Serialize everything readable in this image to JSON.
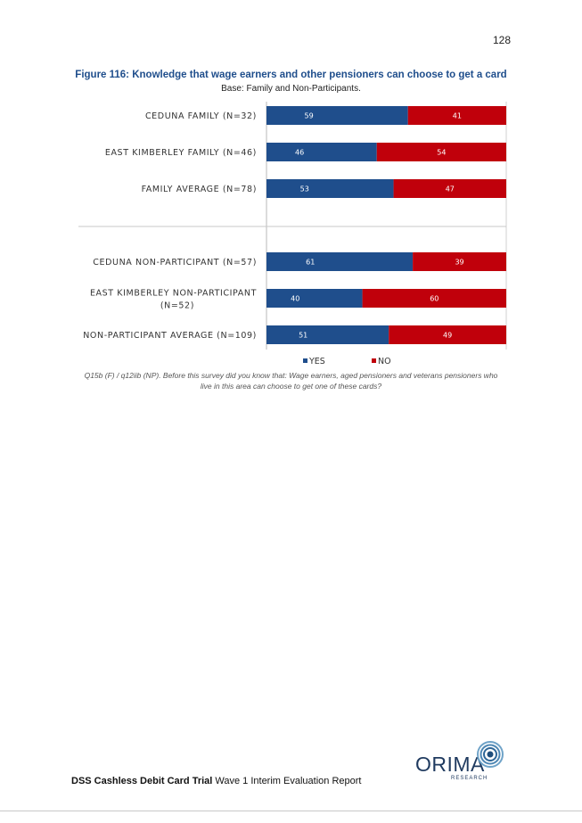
{
  "page_number": "128",
  "figure": {
    "title": "Figure 116: Knowledge that wage earners and other pensioners can choose to get a card",
    "base": "Base: Family and Non-Participants.",
    "caption_line1": "Q15b (F) / q12iib (NP). Before this survey did you know that: Wage earners, aged pensioners and veterans pensioners who",
    "caption_line2": "live in this area can choose to get one of these cards?"
  },
  "chart_data": {
    "type": "bar",
    "orientation": "horizontal",
    "stacked": true,
    "percent": true,
    "categories": [
      [
        "CEDUNA FAMILY (N=32)"
      ],
      [
        "EAST KIMBERLEY FAMILY (N=46)"
      ],
      [
        "FAMILY AVERAGE (N=78)"
      ],
      [
        "CEDUNA NON-PARTICIPANT (N=57)"
      ],
      [
        "EAST KIMBERLEY NON-PARTICIPANT",
        "(N=52)"
      ],
      [
        "NON-PARTICIPANT AVERAGE (N=109)"
      ]
    ],
    "series": [
      {
        "name": "YES",
        "color": "#1f4e8c",
        "values": [
          59,
          46,
          53,
          61,
          40,
          51
        ]
      },
      {
        "name": "NO",
        "color": "#c0000b",
        "values": [
          41,
          54,
          47,
          39,
          60,
          49
        ]
      }
    ],
    "xlim": [
      0,
      100
    ],
    "grid": false,
    "legend": "bottom"
  },
  "footer": {
    "bold": "DSS Cashless Debit Card Trial",
    "rest": " Wave 1 Interim Evaluation Report"
  },
  "logo": {
    "word": "ORIMA",
    "sub": "RESEARCH"
  }
}
